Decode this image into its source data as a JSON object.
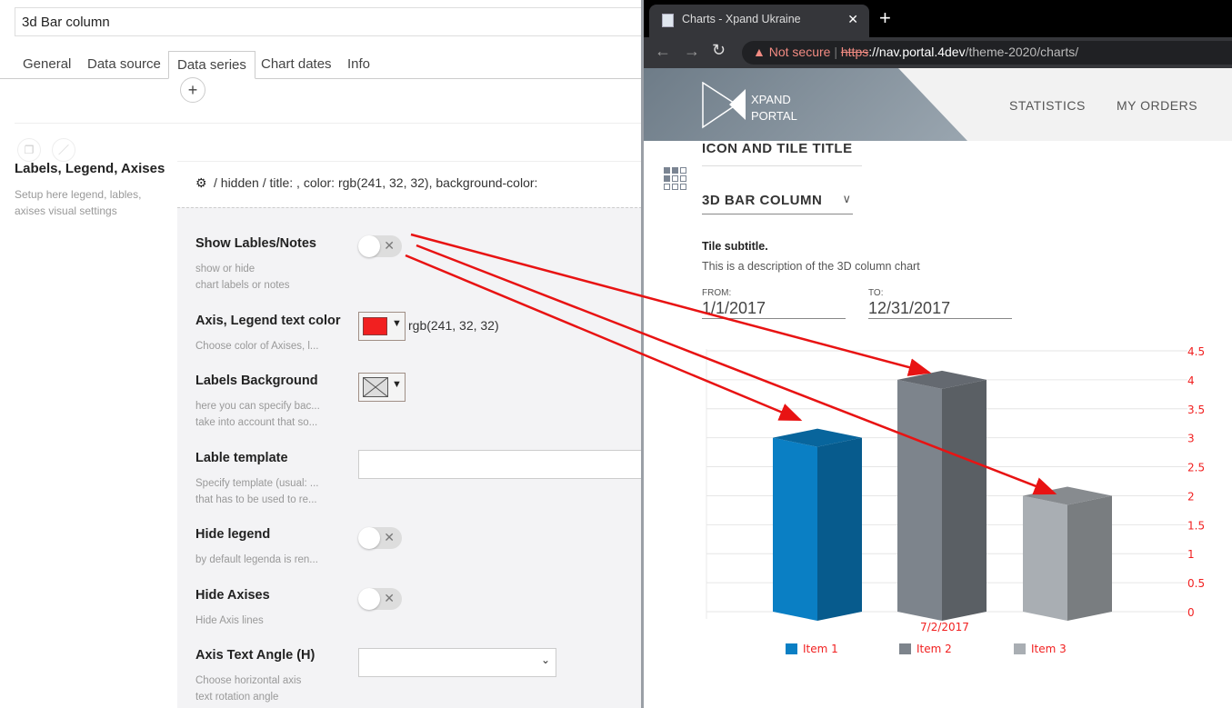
{
  "editor": {
    "title": "3d Bar column",
    "tabs": [
      {
        "label": "General"
      },
      {
        "label": "Data source"
      },
      {
        "label": "Data series",
        "active": true
      },
      {
        "label": "Chart dates"
      },
      {
        "label": "Info"
      }
    ],
    "add_label": "+",
    "section": {
      "title": "Labels, Legend, Axises",
      "description": "Setup here legend, lables, axises visual settings"
    },
    "path": "/ hidden / title: , color: rgb(241, 32, 32), background-color:",
    "fields": [
      {
        "label": "Show Lables/Notes",
        "desc1": "show or hide",
        "desc2": "chart labels or notes",
        "toggle": false
      },
      {
        "label": "Axis, Legend text color",
        "desc1": "Choose color of Axises, l...",
        "value": "rgb(241, 32, 32)",
        "color": "#f12020"
      },
      {
        "label": "Labels Background",
        "desc1": "here you can specify bac...",
        "desc2": "take into account that so..."
      },
      {
        "label": "Lable template",
        "desc1": "Specify template (usual: ...",
        "desc2": "that has to be used to re...",
        "value": ""
      },
      {
        "label": "Hide legend",
        "desc1": "by default legenda is ren...",
        "toggle": false
      },
      {
        "label": "Hide Axises",
        "desc1": "Hide Axis lines",
        "toggle": false
      },
      {
        "label": "Axis Text Angle (H)",
        "desc1": "Choose horizontal axis",
        "desc2": "text rotation angle",
        "value": ""
      }
    ]
  },
  "browser": {
    "tab_title": "Charts - Xpand Ukraine",
    "not_secure": "Not secure",
    "url_scheme": "https",
    "url_host": "://nav.portal.4dev",
    "url_path": "/theme-2020/charts/",
    "logo": "XPAND PORTAL",
    "nav": [
      "STATISTICS",
      "MY ORDERS"
    ]
  },
  "tile": {
    "icon_title": "ICON AND TILE TITLE",
    "chart_select": "3D BAR COLUMN",
    "subtitle": "Tile subtitle.",
    "description": "This is a description of the 3D column chart",
    "from_label": "FROM:",
    "from": "1/1/2017",
    "to_label": "TO:",
    "to": "12/31/2017"
  },
  "chart_data": {
    "type": "bar",
    "categories": [
      "7/2/2017"
    ],
    "series": [
      {
        "name": "Item 1",
        "values": [
          3
        ],
        "color": "#0a7fc4"
      },
      {
        "name": "Item 2",
        "values": [
          4
        ],
        "color": "#7d848c"
      },
      {
        "name": "Item 3",
        "values": [
          2
        ],
        "color": "#a9aeb3"
      }
    ],
    "ylim": [
      0,
      4.5
    ],
    "yticks": [
      "0",
      "0.5",
      "1",
      "1.5",
      "2",
      "2.5",
      "3",
      "3.5",
      "4",
      "4.5"
    ],
    "axis_position": "right",
    "text_color": "#f12020",
    "grid": true,
    "legend_placement": "bottom"
  }
}
